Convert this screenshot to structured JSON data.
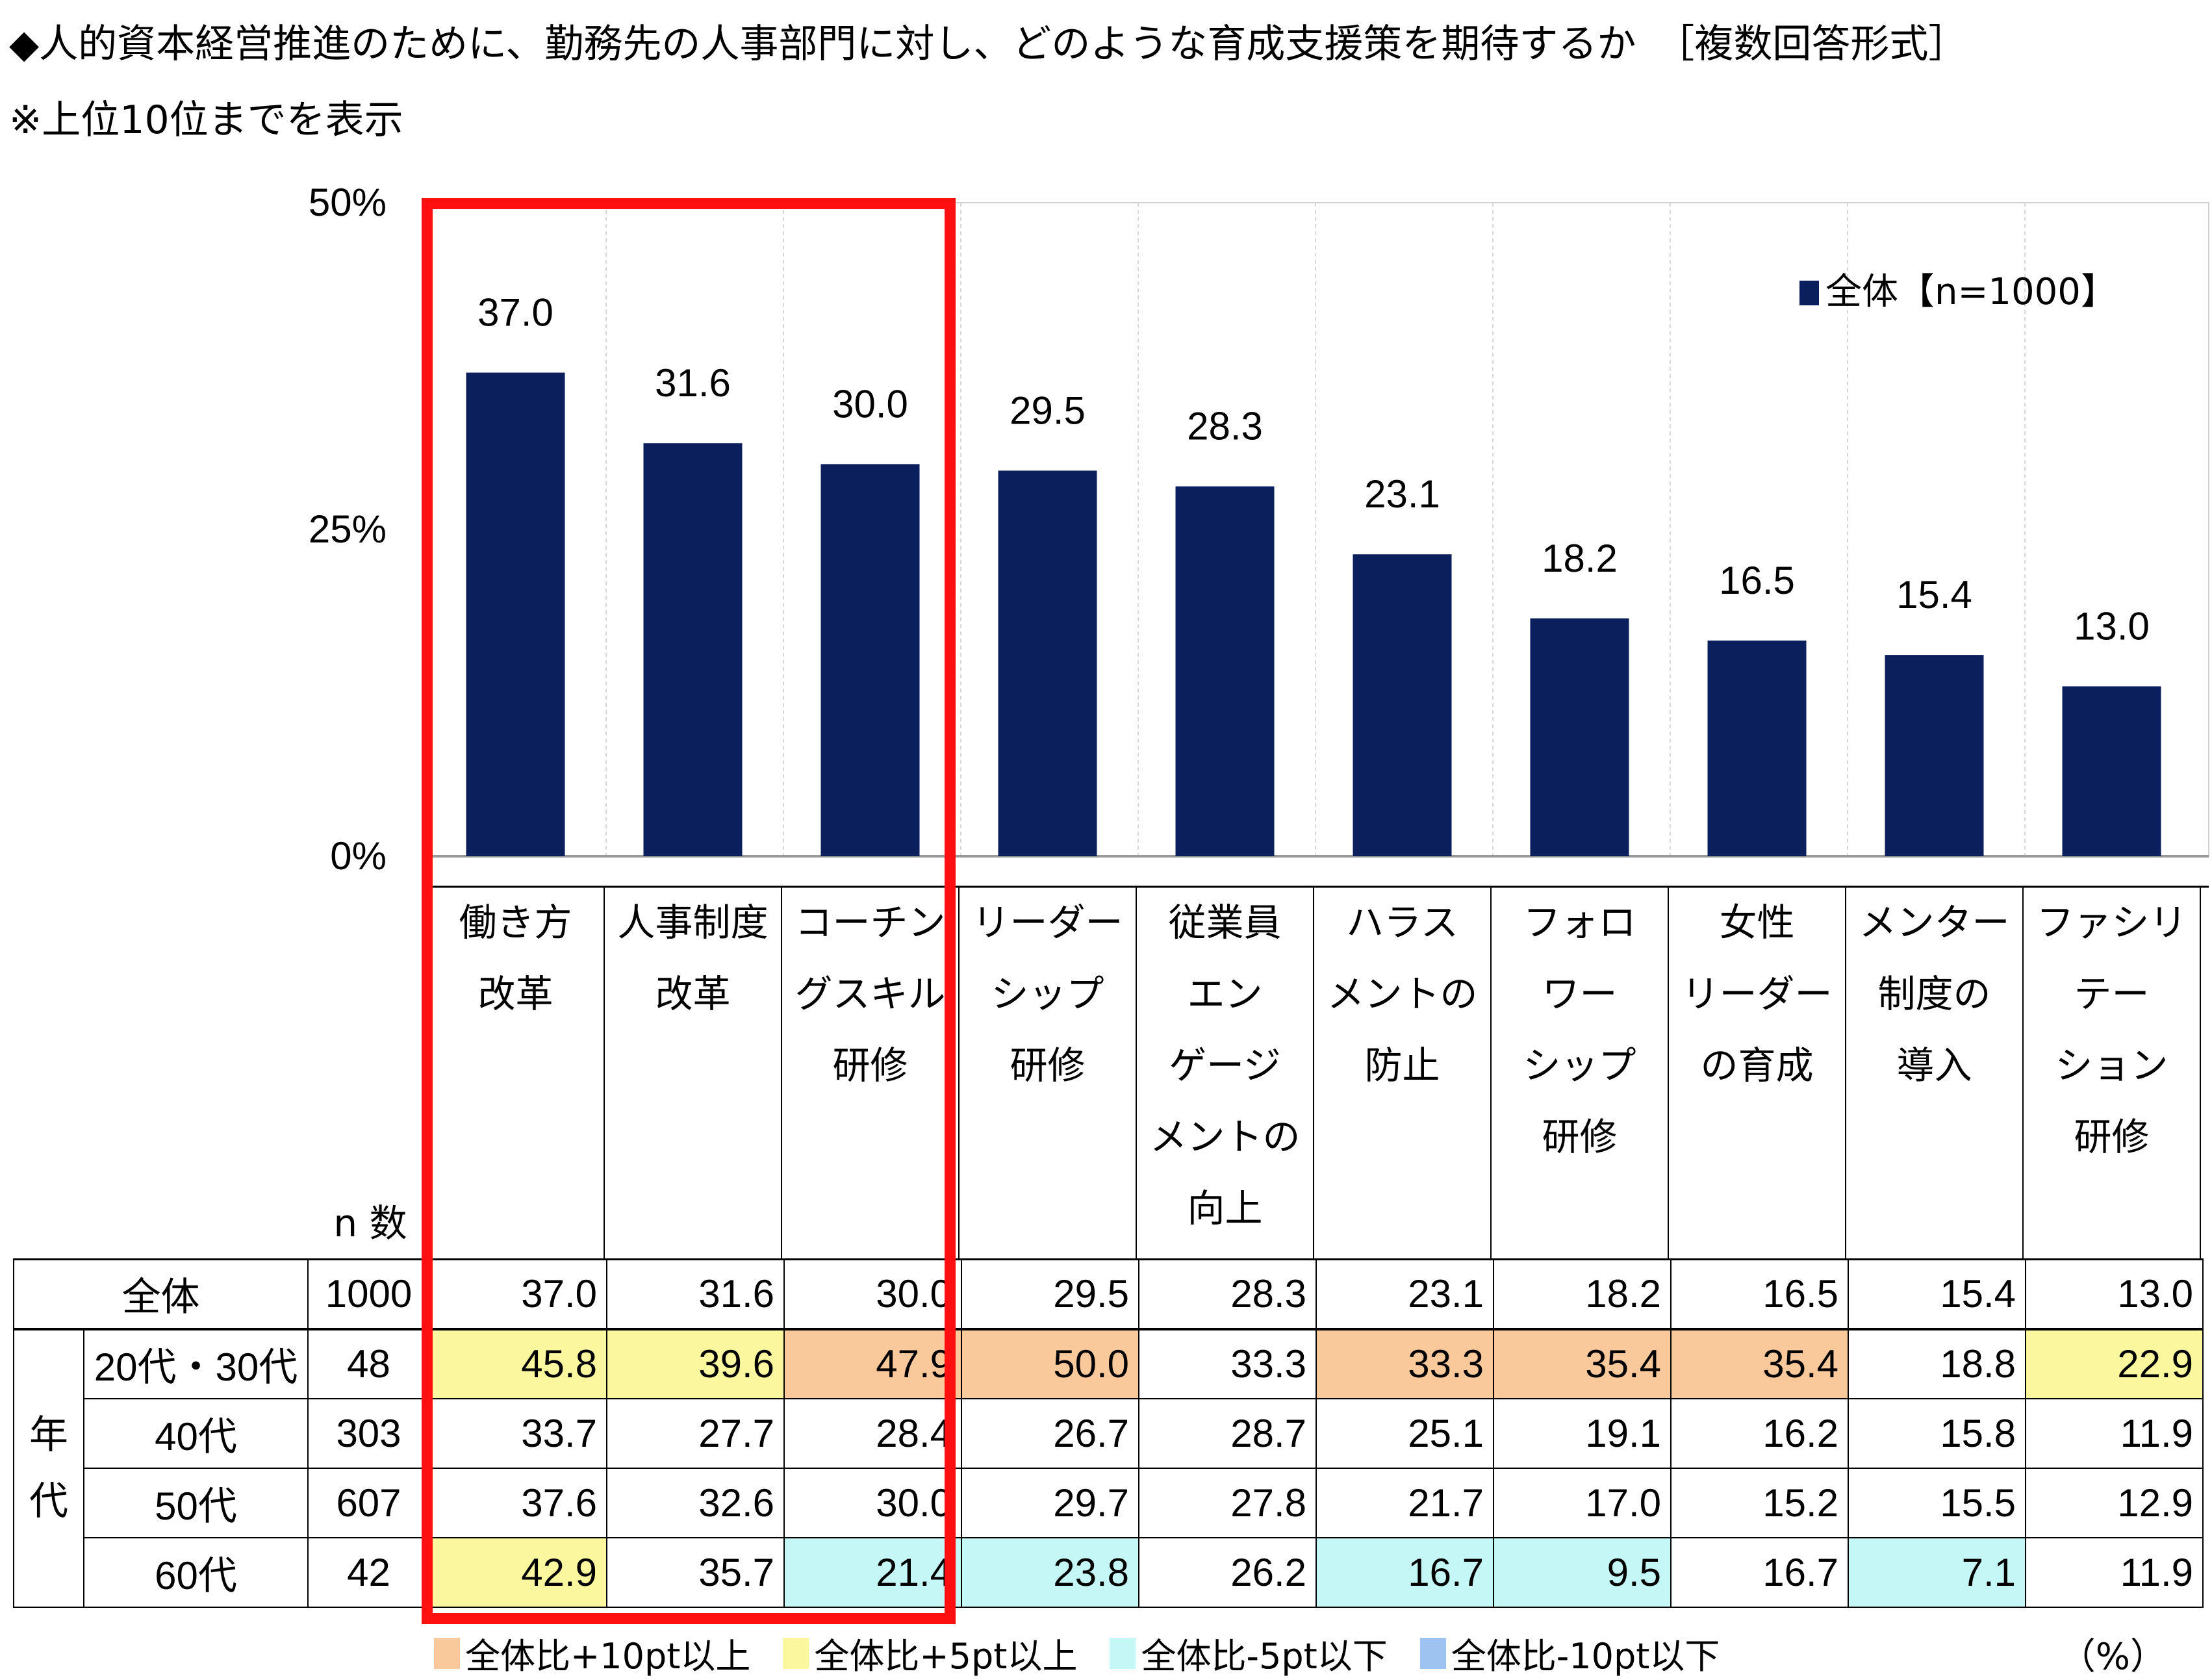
{
  "header": {
    "title": "◆人的資本経営推進のために、勤務先の人事部門に対し、どのような育成支援策を期待するか　［複数回答形式］",
    "note": "※上位10位までを表示"
  },
  "chart_data": {
    "type": "bar",
    "categories": [
      [
        "働き方",
        "改革"
      ],
      [
        "人事制度",
        "改革"
      ],
      [
        "コーチン",
        "グスキル",
        "研修"
      ],
      [
        "リーダー",
        "シップ",
        "研修"
      ],
      [
        "従業員",
        "エン",
        "ゲージ",
        "メントの",
        "向上"
      ],
      [
        "ハラス",
        "メントの",
        "防止"
      ],
      [
        "フォロ",
        "ワー",
        "シップ",
        "研修"
      ],
      [
        "女性",
        "リーダー",
        "の育成"
      ],
      [
        "メンター",
        "制度の",
        "導入"
      ],
      [
        "ファシリ",
        "テー",
        "ション",
        "研修"
      ]
    ],
    "series": [
      {
        "name": "全体【n=1000】",
        "values": [
          37.0,
          31.6,
          30.0,
          29.5,
          28.3,
          23.1,
          18.2,
          16.5,
          15.4,
          13.0
        ],
        "color": "#0b1f5c"
      }
    ],
    "value_labels": [
      "37.0",
      "31.6",
      "30.0",
      "29.5",
      "28.3",
      "23.1",
      "18.2",
      "16.5",
      "15.4",
      "13.0"
    ],
    "yticks": [
      "0%",
      "25%",
      "50%"
    ],
    "ylim": [
      0,
      50
    ],
    "legend": "top-right",
    "highlighted_categories": [
      0,
      1,
      2
    ],
    "n_header": "n 数"
  },
  "table": {
    "age_group_label": "年代",
    "rows": [
      {
        "label": "全体",
        "n": "1000",
        "values": [
          "37.0",
          "31.6",
          "30.0",
          "29.5",
          "28.3",
          "23.1",
          "18.2",
          "16.5",
          "15.4",
          "13.0"
        ],
        "flags": [
          "",
          "",
          "",
          "",
          "",
          "",
          "",
          "",
          "",
          ""
        ]
      },
      {
        "label": "20代・30代",
        "n": "48",
        "values": [
          "45.8",
          "39.6",
          "47.9",
          "50.0",
          "33.3",
          "33.3",
          "35.4",
          "35.4",
          "18.8",
          "22.9"
        ],
        "flags": [
          "up5",
          "up5",
          "up10",
          "up10",
          "",
          "up10",
          "up10",
          "up10",
          "",
          "up5"
        ]
      },
      {
        "label": "40代",
        "n": "303",
        "values": [
          "33.7",
          "27.7",
          "28.4",
          "26.7",
          "28.7",
          "25.1",
          "19.1",
          "16.2",
          "15.8",
          "11.9"
        ],
        "flags": [
          "",
          "",
          "",
          "",
          "",
          "",
          "",
          "",
          "",
          ""
        ]
      },
      {
        "label": "50代",
        "n": "607",
        "values": [
          "37.6",
          "32.6",
          "30.0",
          "29.7",
          "27.8",
          "21.7",
          "17.0",
          "15.2",
          "15.5",
          "12.9"
        ],
        "flags": [
          "",
          "",
          "",
          "",
          "",
          "",
          "",
          "",
          "",
          ""
        ]
      },
      {
        "label": "60代",
        "n": "42",
        "values": [
          "42.9",
          "35.7",
          "21.4",
          "23.8",
          "26.2",
          "16.7",
          "9.5",
          "16.7",
          "7.1",
          "11.9"
        ],
        "flags": [
          "up5",
          "",
          "dn5",
          "dn5",
          "",
          "dn5",
          "dn5",
          "",
          "dn5",
          ""
        ]
      }
    ]
  },
  "legend": {
    "items": [
      {
        "key": "up10",
        "label": "全体比+10pt以上",
        "color": "#f9c89b"
      },
      {
        "key": "up5",
        "label": "全体比+5pt以上",
        "color": "#fbf79f"
      },
      {
        "key": "dn5",
        "label": "全体比-5pt以下",
        "color": "#c6f7f7"
      },
      {
        "key": "dn10",
        "label": "全体比-10pt以下",
        "color": "#9dc3f0"
      }
    ],
    "unit": "（%）"
  }
}
